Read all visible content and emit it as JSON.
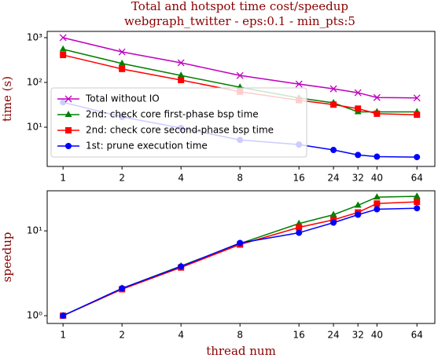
{
  "chart_data": [
    {
      "type": "line",
      "title": [
        "Total and hotspot time cost/speedup",
        "webgraph_twitter - eps:0.1 - min_pts:5"
      ],
      "ylabel": "time (s)",
      "xscale": "log2",
      "yscale": "log",
      "x": [
        1,
        2,
        4,
        8,
        16,
        24,
        32,
        40,
        64
      ],
      "xlim": [
        0.83,
        79
      ],
      "xticks": [
        1,
        2,
        4,
        8,
        16,
        24,
        32,
        40,
        64
      ],
      "ylim": [
        1.33,
        1380
      ],
      "yticks": [
        {
          "value": 10,
          "label": "10¹"
        },
        {
          "value": 100,
          "label": "10²"
        },
        {
          "value": 1000,
          "label": "10³"
        }
      ],
      "legend": "lower left",
      "series": [
        {
          "name": "Total without IO",
          "color": "#bf00bf",
          "marker": "x",
          "values": [
            1000,
            480,
            275,
            143,
            92,
            72,
            59,
            46,
            45
          ]
        },
        {
          "name": "2nd: check core first-phase bsp time",
          "color": "#008000",
          "marker": "^",
          "values": [
            550,
            265,
            143,
            78,
            45,
            35,
            22,
            22,
            22
          ]
        },
        {
          "name": "2nd: check core second-phase bsp time",
          "color": "#ff0000",
          "marker": "s",
          "values": [
            410,
            200,
            113,
            62,
            40,
            32,
            26,
            20,
            19
          ]
        },
        {
          "name": "1st: prune execution time",
          "color": "#0000ff",
          "marker": "o",
          "values": [
            36,
            17,
            9.6,
            5.2,
            4.1,
            3.1,
            2.4,
            2.2,
            2.15
          ]
        }
      ]
    },
    {
      "type": "line",
      "ylabel": "speedup",
      "xlabel": "thread num",
      "xscale": "log2",
      "yscale": "log",
      "x": [
        1,
        2,
        4,
        8,
        16,
        24,
        32,
        40,
        64
      ],
      "xlim": [
        0.83,
        79
      ],
      "xticks": [
        1,
        2,
        4,
        8,
        16,
        24,
        32,
        40,
        64
      ],
      "ylim": [
        0.81,
        29.7
      ],
      "yticks": [
        {
          "value": 1,
          "label": "10⁰"
        },
        {
          "value": 10,
          "label": "10¹"
        }
      ],
      "series": [
        {
          "color": "#008000",
          "marker": "^",
          "values": [
            1,
            2.1,
            3.85,
            7.1,
            12.2,
            15.5,
            20,
            25,
            25.5
          ]
        },
        {
          "color": "#ff0000",
          "marker": "s",
          "values": [
            1,
            2.05,
            3.7,
            6.9,
            11,
            13.5,
            16.5,
            21,
            22
          ]
        },
        {
          "color": "#0000ff",
          "marker": "o",
          "values": [
            1,
            2.1,
            3.8,
            7.2,
            9.5,
            12.5,
            15.5,
            18,
            18.5
          ]
        }
      ]
    }
  ]
}
